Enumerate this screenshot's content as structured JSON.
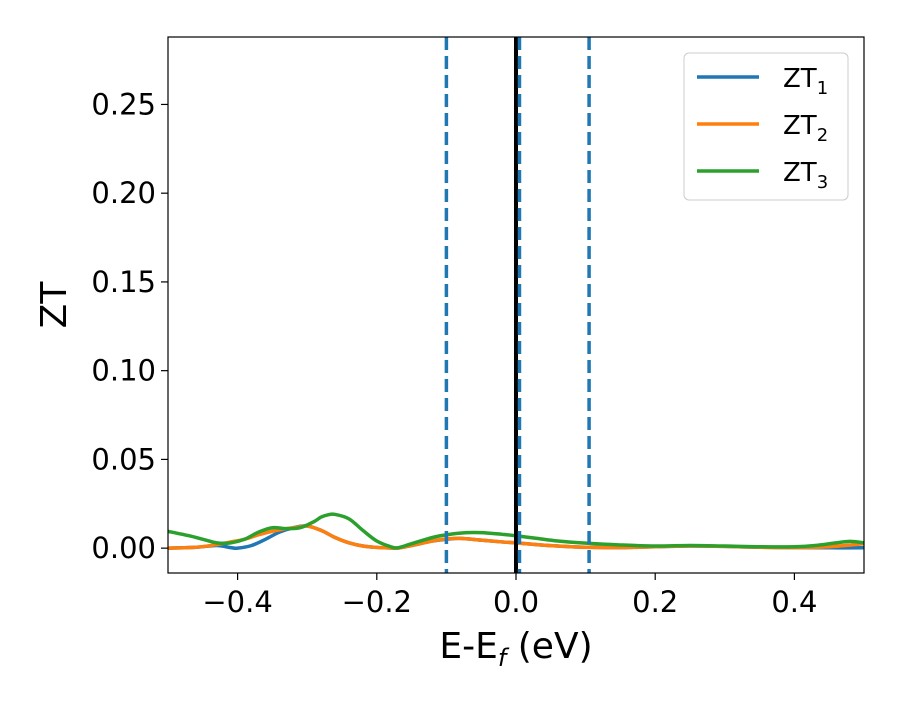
{
  "chart_data": {
    "type": "line",
    "title": "",
    "xlabel": {
      "main": "E-E",
      "sub": "f",
      "suffix": " (eV)"
    },
    "ylabel": "ZT",
    "xlim": [
      -0.5,
      0.5
    ],
    "ylim": [
      -0.014,
      0.288
    ],
    "xticks": [
      -0.4,
      -0.2,
      0.0,
      0.2,
      0.4
    ],
    "xtick_labels": [
      "−0.4",
      "−0.2",
      "0.0",
      "0.2",
      "0.4"
    ],
    "yticks": [
      0.0,
      0.05,
      0.1,
      0.15,
      0.2,
      0.25
    ],
    "ytick_labels": [
      "0.00",
      "0.05",
      "0.10",
      "0.15",
      "0.20",
      "0.25"
    ],
    "grid": false,
    "legend_position": "top-right",
    "vertical_lines": [
      {
        "x": 0.0,
        "style": "solid",
        "color": "#000000"
      },
      {
        "x": -0.1,
        "style": "dashed",
        "color": "#1f77b4"
      },
      {
        "x": 0.005,
        "style": "dashed",
        "color": "#1f77b4"
      },
      {
        "x": 0.105,
        "style": "dashed",
        "color": "#1f77b4"
      }
    ],
    "series": [
      {
        "name": {
          "main": "ZT",
          "sub": "1"
        },
        "color": "#1f77b4",
        "x": [
          -0.5,
          -0.46,
          -0.43,
          -0.41,
          -0.4,
          -0.38,
          -0.36,
          -0.34,
          -0.32,
          -0.3,
          -0.28,
          -0.26,
          -0.24,
          -0.22,
          -0.2,
          -0.18,
          -0.17,
          -0.15,
          -0.12,
          -0.1,
          -0.08,
          -0.05,
          -0.02,
          0.0,
          0.03,
          0.06,
          0.1,
          0.15,
          0.2,
          0.25,
          0.3,
          0.35,
          0.4,
          0.45,
          0.5
        ],
        "y": [
          0.0,
          0.0005,
          0.0015,
          0.0003,
          0.0,
          0.0015,
          0.005,
          0.009,
          0.0115,
          0.0125,
          0.01,
          0.006,
          0.003,
          0.0012,
          0.0004,
          0.0001,
          0.0,
          0.0015,
          0.004,
          0.005,
          0.0055,
          0.0045,
          0.0035,
          0.003,
          0.002,
          0.0012,
          0.0005,
          0.0003,
          0.0008,
          0.0012,
          0.001,
          0.0005,
          0.0003,
          0.0002,
          0.0002
        ]
      },
      {
        "name": {
          "main": "ZT",
          "sub": "2"
        },
        "color": "#ff7f0e",
        "x": [
          -0.5,
          -0.46,
          -0.43,
          -0.41,
          -0.39,
          -0.37,
          -0.35,
          -0.33,
          -0.31,
          -0.3,
          -0.28,
          -0.26,
          -0.24,
          -0.22,
          -0.2,
          -0.18,
          -0.17,
          -0.15,
          -0.12,
          -0.1,
          -0.08,
          -0.05,
          -0.02,
          0.0,
          0.03,
          0.06,
          0.1,
          0.15,
          0.2,
          0.25,
          0.3,
          0.35,
          0.4,
          0.45,
          0.5
        ],
        "y": [
          0.0,
          0.0005,
          0.002,
          0.0035,
          0.005,
          0.0075,
          0.0095,
          0.011,
          0.012,
          0.0125,
          0.01,
          0.006,
          0.003,
          0.0012,
          0.0004,
          0.0001,
          0.0,
          0.0015,
          0.004,
          0.0052,
          0.0055,
          0.0045,
          0.0035,
          0.003,
          0.002,
          0.0012,
          0.0005,
          0.0003,
          0.0008,
          0.0012,
          0.001,
          0.0005,
          0.0003,
          0.0008,
          0.0025
        ]
      },
      {
        "name": {
          "main": "ZT",
          "sub": "3"
        },
        "color": "#2ca02c",
        "x": [
          -0.5,
          -0.47,
          -0.45,
          -0.43,
          -0.41,
          -0.39,
          -0.37,
          -0.35,
          -0.33,
          -0.31,
          -0.29,
          -0.28,
          -0.27,
          -0.26,
          -0.24,
          -0.22,
          -0.2,
          -0.18,
          -0.17,
          -0.15,
          -0.12,
          -0.1,
          -0.08,
          -0.06,
          -0.04,
          -0.02,
          0.0,
          0.03,
          0.06,
          0.1,
          0.15,
          0.2,
          0.25,
          0.3,
          0.35,
          0.4,
          0.43,
          0.46,
          0.48,
          0.5
        ],
        "y": [
          0.0095,
          0.007,
          0.005,
          0.003,
          0.003,
          0.005,
          0.009,
          0.0115,
          0.011,
          0.0115,
          0.015,
          0.0175,
          0.0188,
          0.019,
          0.0165,
          0.01,
          0.004,
          0.0008,
          0.0002,
          0.0025,
          0.006,
          0.0075,
          0.0085,
          0.0088,
          0.0085,
          0.0078,
          0.007,
          0.0055,
          0.004,
          0.0028,
          0.0018,
          0.0012,
          0.0015,
          0.0012,
          0.0008,
          0.0008,
          0.0015,
          0.003,
          0.0038,
          0.003
        ]
      }
    ]
  }
}
